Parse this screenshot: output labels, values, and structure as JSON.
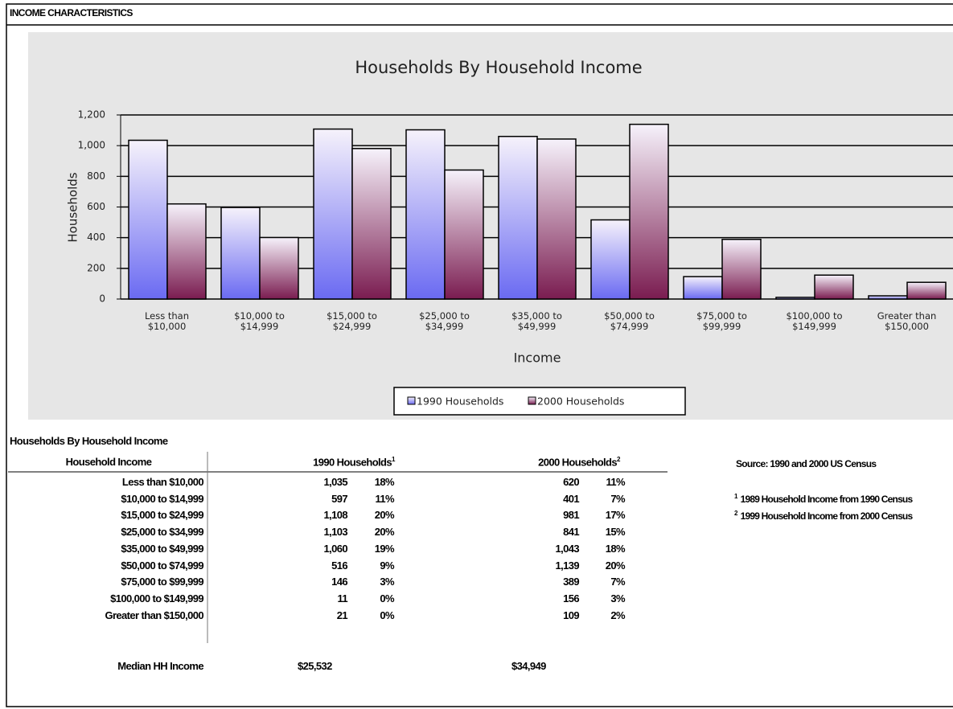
{
  "header": {
    "title": "INCOME CHARACTERISTICS"
  },
  "chart_data": {
    "type": "bar",
    "title": "Households By Household Income",
    "x_label": "Income",
    "y_label": "Households",
    "categories": [
      "Less than $10,000",
      "$10,000 to $14,999",
      "$15,000 to $24,999",
      "$25,000 to $34,999",
      "$35,000 to $49,999",
      "$50,000 to $74,999",
      "$75,000 to $99,999",
      "$100,000 to $149,999",
      "Greater than $150,000"
    ],
    "series": [
      {
        "name": "1990 Households",
        "color": "#6a6af2",
        "values": [
          1035,
          597,
          1108,
          1103,
          1060,
          516,
          146,
          11,
          21
        ]
      },
      {
        "name": "2000 Households",
        "color": "#7a1c50",
        "values": [
          620,
          401,
          981,
          841,
          1043,
          1139,
          389,
          156,
          109
        ]
      }
    ],
    "ylim": [
      0,
      1200
    ],
    "yticks": [
      0,
      200,
      400,
      600,
      800,
      {
        "value": 1000,
        "label": "1,000"
      },
      {
        "value": 1200,
        "label": "1,200"
      }
    ],
    "grid": true,
    "legend": "bottom"
  },
  "table": {
    "title": "Households By Household Income",
    "columns": [
      {
        "label": "Household Income"
      },
      {
        "label": "1990 Households",
        "note": "1"
      },
      {
        "label": "2000 Households",
        "note": "2"
      }
    ],
    "rows": [
      [
        "Less than $10,000",
        "1,035",
        "18%",
        "620",
        "11%"
      ],
      [
        "$10,000 to $14,999",
        "597",
        "11%",
        "401",
        "7%"
      ],
      [
        "$15,000 to $24,999",
        "1,108",
        "20%",
        "981",
        "17%"
      ],
      [
        "$25,000 to $34,999",
        "1,103",
        "20%",
        "841",
        "15%"
      ],
      [
        "$35,000 to $49,999",
        "1,060",
        "19%",
        "1,043",
        "18%"
      ],
      [
        "$50,000 to $74,999",
        "516",
        "9%",
        "1,139",
        "20%"
      ],
      [
        "$75,000 to $99,999",
        "146",
        "3%",
        "389",
        "7%"
      ],
      [
        "$100,000 to $149,999",
        "11",
        "0%",
        "156",
        "3%"
      ],
      [
        "Greater than $150,000",
        "21",
        "0%",
        "109",
        "2%"
      ]
    ],
    "median": {
      "label": "Median HH Income",
      "values": [
        "$25,532",
        "$34,949"
      ]
    }
  },
  "source": "Source: 1990 and 2000 US Census",
  "footnotes": [
    {
      "mark": "1",
      "text": "1989 Household Income from 1990 Census"
    },
    {
      "mark": "2",
      "text": "1999 Household Income from 2000 Census"
    }
  ]
}
